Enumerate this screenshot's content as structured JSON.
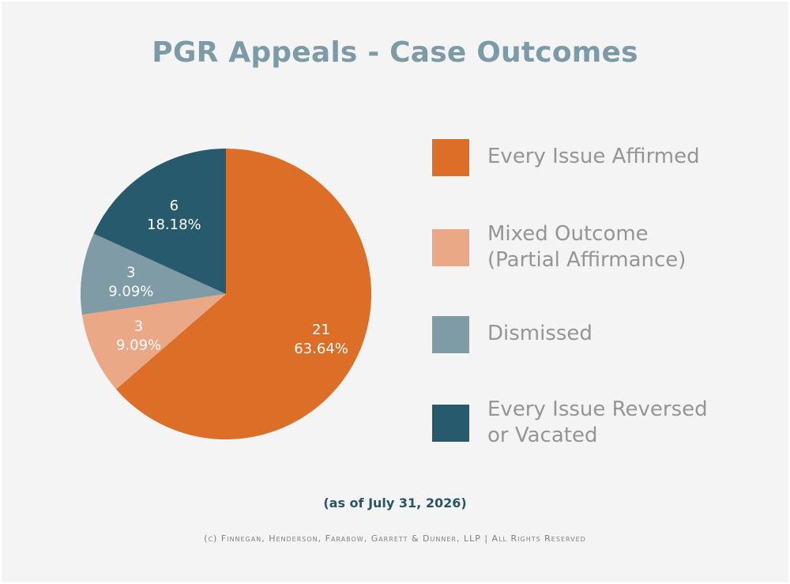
{
  "chart_data": {
    "type": "pie",
    "title": "PGR Appeals - Case Outcomes",
    "legend_position": "right",
    "slices": [
      {
        "name": "Every Issue Affirmed",
        "value": 21,
        "percent": "63.64%",
        "color": "#dc6e27"
      },
      {
        "name": "Mixed Outcome\n(Partial Affirmance)",
        "value": 3,
        "percent": "9.09%",
        "color": "#eaa886"
      },
      {
        "name": "Dismissed",
        "value": 3,
        "percent": "9.09%",
        "color": "#7f9ba6"
      },
      {
        "name": "Every Issue Reversed\nor Vacated",
        "value": 6,
        "percent": "18.18%",
        "color": "#275a6c"
      }
    ]
  },
  "footer": {
    "date_note": "(as of July 31, 2026)",
    "copyright": "(c) Finnegan, Henderson, Farabow, Garrett & Dunner, LLP | All Rights Reserved"
  }
}
